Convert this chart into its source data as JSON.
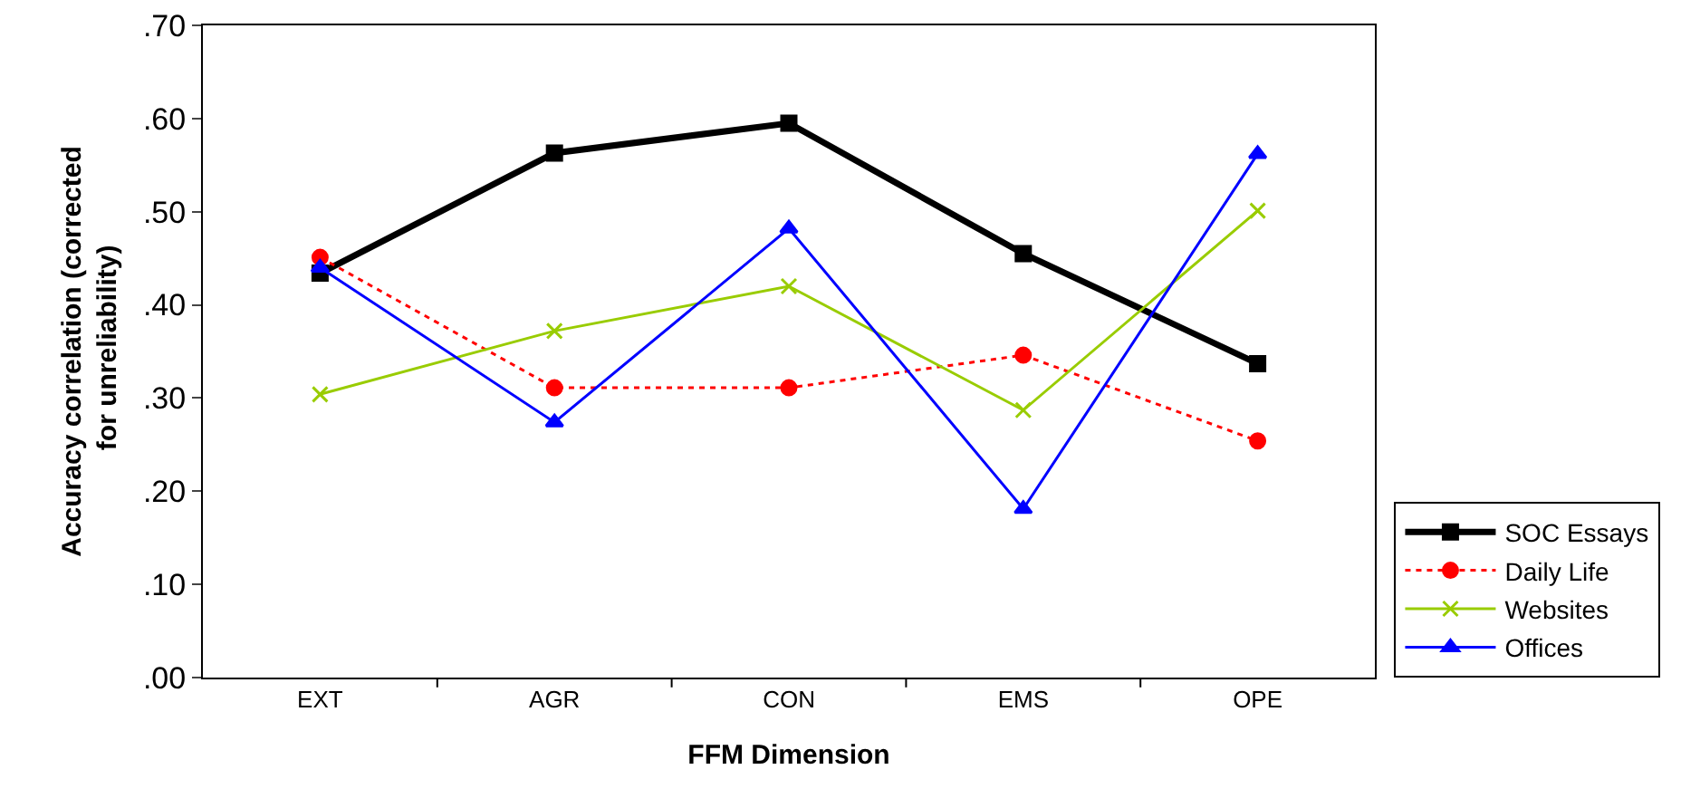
{
  "chart_data": {
    "type": "line",
    "xlabel": "FFM Dimension",
    "ylabel": "Accuracy correlation (corrected for unreliability)",
    "categories": [
      "EXT",
      "AGR",
      "CON",
      "EMS",
      "OPE"
    ],
    "series": [
      {
        "name": "SOC Essays",
        "color": "#000000",
        "marker": "square",
        "line_style": "solid",
        "values": [
          0.434,
          0.563,
          0.595,
          0.455,
          0.337
        ]
      },
      {
        "name": "Daily Life",
        "color": "#ff0000",
        "marker": "circle",
        "line_style": "dotted",
        "values": [
          0.451,
          0.311,
          0.311,
          0.346,
          0.254
        ]
      },
      {
        "name": "Websites",
        "color": "#99cc00",
        "marker": "cross",
        "line_style": "solid",
        "values": [
          0.304,
          0.372,
          0.42,
          0.287,
          0.501
        ]
      },
      {
        "name": "Offices",
        "color": "#0000ff",
        "marker": "triangle",
        "line_style": "solid",
        "values": [
          0.44,
          0.274,
          0.482,
          0.181,
          0.562
        ]
      }
    ],
    "ylim": [
      0,
      0.7
    ],
    "yticks": [
      {
        "value": 0,
        "label": ".00"
      },
      {
        "value": 0.1,
        "label": ".10"
      },
      {
        "value": 0.2,
        "label": ".20"
      },
      {
        "value": 0.3,
        "label": ".30"
      },
      {
        "value": 0.4,
        "label": ".40"
      },
      {
        "value": 0.5,
        "label": ".50"
      },
      {
        "value": 0.6,
        "label": ".60"
      },
      {
        "value": 0.7,
        "label": ".70"
      }
    ],
    "grid": false,
    "legend": "right"
  }
}
